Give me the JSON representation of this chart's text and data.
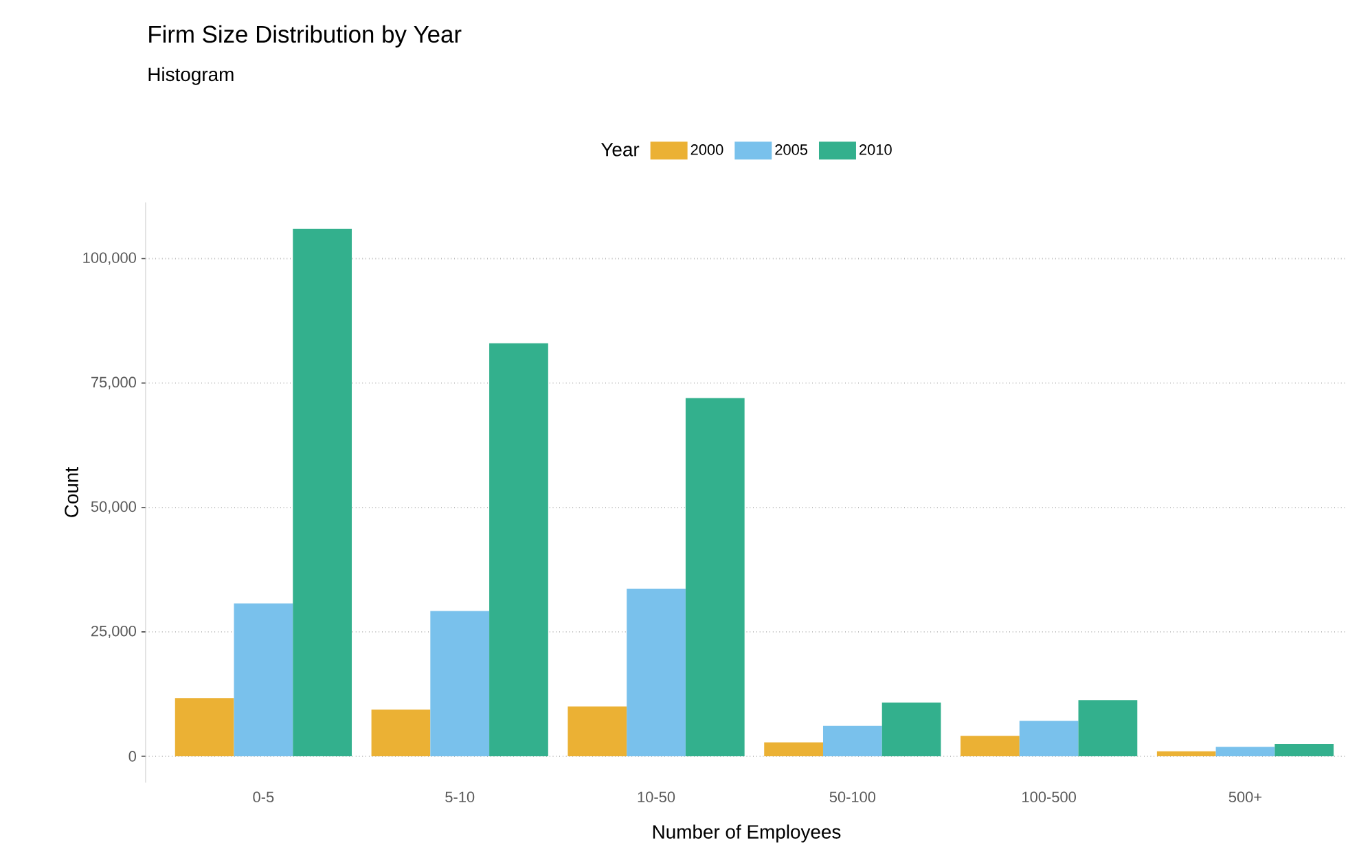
{
  "chart_data": {
    "type": "bar",
    "title": "Firm Size Distribution by Year",
    "subtitle": "Histogram",
    "xlabel": "Number of Employees",
    "ylabel": "Count",
    "legend_title": "Year",
    "categories": [
      "0-5",
      "5-10",
      "10-50",
      "50-100",
      "100-500",
      "500+"
    ],
    "series": [
      {
        "name": "2000",
        "color": "#ebb134",
        "values": [
          11700,
          9400,
          10000,
          2800,
          4100,
          1000
        ]
      },
      {
        "name": "2005",
        "color": "#79c1ec",
        "values": [
          30700,
          29200,
          33700,
          6100,
          7100,
          1900
        ]
      },
      {
        "name": "2010",
        "color": "#33b08d",
        "values": [
          106000,
          83000,
          72000,
          10800,
          11300,
          2500
        ]
      }
    ],
    "ylim": [
      -5300,
      111300
    ],
    "yticks": [
      0,
      {
        "value": 25000,
        "label": "25,000"
      },
      {
        "value": 50000,
        "label": "50,000"
      },
      {
        "value": 75000,
        "label": "75,000"
      },
      {
        "value": 100000,
        "label": "100,000"
      }
    ],
    "grid": "y",
    "legend": "top"
  }
}
